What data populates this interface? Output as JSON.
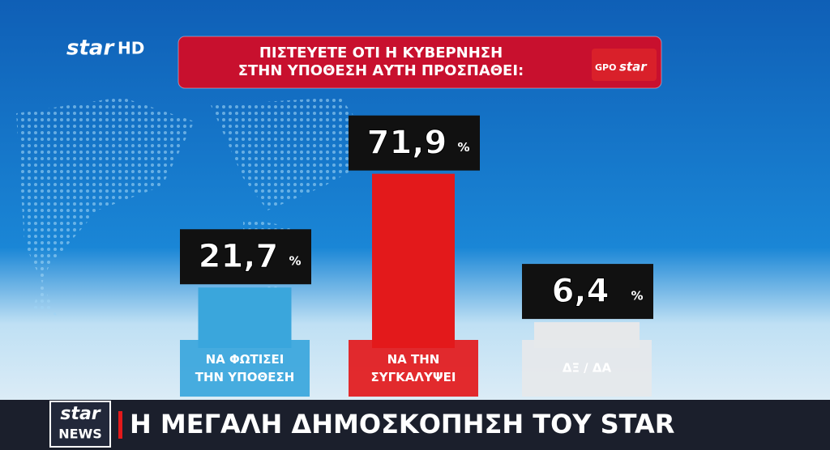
{
  "logo": {
    "text": "star",
    "suffix": "HD"
  },
  "source_logo": {
    "agency": "GPO",
    "channel": "star"
  },
  "chart_data": {
    "type": "bar",
    "title": "ΠΙΣΤΕΥΕΤΕ ΟΤΙ Η ΚΥΒΕΡΝΗΣΗ\nΣΤΗΝ ΥΠΟΘΕΣΗ ΑΥΤΗ ΠΡΟΣΠΑΘΕΙ:",
    "categories": [
      "ΝΑ ΦΩΤΙΣΕΙ\nΤΗΝ ΥΠΟΘΕΣΗ",
      "ΝΑ ΤΗΝ\nΣΥΓΚΑΛΥΨΕΙ",
      "ΔΞ / ΔΑ"
    ],
    "values": [
      21.7,
      71.9,
      6.4
    ],
    "value_labels": [
      "21,7",
      "71,9",
      "6,4"
    ],
    "unit": "%",
    "colors": [
      "#3aa6dc",
      "#e3191b",
      "#e6e8ea"
    ]
  },
  "ticker": {
    "logo": "star",
    "logo_sub": "NEWS",
    "headline": "Η ΜΕΓΑΛΗ ΔΗΜΟΣΚΟΠΗΣΗ ΤΟΥ STAR"
  }
}
